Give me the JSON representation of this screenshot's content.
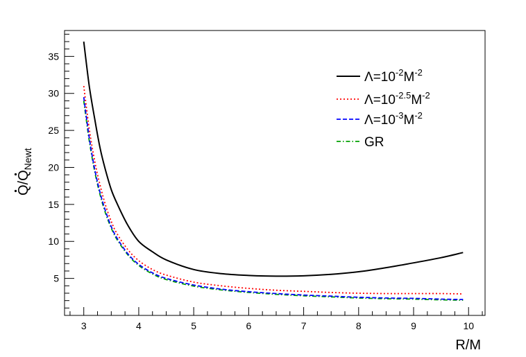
{
  "chart_data": {
    "type": "line",
    "xlabel": "R/M",
    "ylabel_main": "Q/Q",
    "ylabel_sub": "Newt",
    "xlim": [
      2.65,
      10.3
    ],
    "ylim": [
      0,
      38.5
    ],
    "xticks": [
      3,
      4,
      5,
      6,
      7,
      8,
      9,
      10
    ],
    "yticks": [
      5,
      10,
      15,
      20,
      25,
      30,
      35
    ],
    "grid": false,
    "legend_position": "top-right",
    "series": [
      {
        "name": "Λ=10⁻²M⁻²",
        "legend": {
          "base": "Λ=10",
          "exp1": "-2",
          "mid": "M",
          "exp2": "-2"
        },
        "color": "#000000",
        "style": "solid",
        "x": [
          3.0,
          3.1,
          3.2,
          3.3,
          3.4,
          3.5,
          3.6,
          3.8,
          4.0,
          4.25,
          4.5,
          5.0,
          5.5,
          6.0,
          6.5,
          7.0,
          7.5,
          8.0,
          8.5,
          9.0,
          9.5,
          9.9
        ],
        "y": [
          37.0,
          31.0,
          26.5,
          22.5,
          19.5,
          17.0,
          15.2,
          12.2,
          10.0,
          8.6,
          7.5,
          6.2,
          5.65,
          5.4,
          5.3,
          5.35,
          5.55,
          5.9,
          6.45,
          7.1,
          7.8,
          8.5
        ]
      },
      {
        "name": "Λ=10⁻²·⁵M⁻²",
        "legend": {
          "base": "Λ=10",
          "exp1": "-2.5",
          "mid": "M",
          "exp2": "-2"
        },
        "color": "#ff0000",
        "style": "dotted",
        "x": [
          3.0,
          3.1,
          3.2,
          3.3,
          3.4,
          3.5,
          3.6,
          3.8,
          4.0,
          4.25,
          4.5,
          5.0,
          5.5,
          6.0,
          6.5,
          7.0,
          7.5,
          8.0,
          8.5,
          9.0,
          9.5,
          9.9
        ],
        "y": [
          31.0,
          25.2,
          20.8,
          17.5,
          14.8,
          12.7,
          11.1,
          8.9,
          7.4,
          6.2,
          5.45,
          4.5,
          4.0,
          3.65,
          3.4,
          3.25,
          3.1,
          3.0,
          2.95,
          2.95,
          2.95,
          2.9
        ]
      },
      {
        "name": "Λ=10⁻³M⁻²",
        "legend": {
          "base": "Λ=10",
          "exp1": "-3",
          "mid": "M",
          "exp2": "-2"
        },
        "color": "#0000ff",
        "style": "dashed",
        "x": [
          3.0,
          3.1,
          3.2,
          3.3,
          3.4,
          3.5,
          3.6,
          3.8,
          4.0,
          4.25,
          4.5,
          5.0,
          5.5,
          6.0,
          6.5,
          7.0,
          7.5,
          8.0,
          8.5,
          9.0,
          9.5,
          9.9
        ],
        "y": [
          29.5,
          24.0,
          19.7,
          16.5,
          14.0,
          12.0,
          10.5,
          8.35,
          6.9,
          5.75,
          5.0,
          4.1,
          3.55,
          3.2,
          2.95,
          2.75,
          2.6,
          2.45,
          2.35,
          2.3,
          2.2,
          2.15
        ]
      },
      {
        "name": "GR",
        "legend": {
          "base": "GR",
          "exp1": "",
          "mid": "",
          "exp2": ""
        },
        "color": "#00a000",
        "style": "dashdot",
        "x": [
          3.0,
          3.1,
          3.2,
          3.3,
          3.4,
          3.5,
          3.6,
          3.8,
          4.0,
          4.25,
          4.5,
          5.0,
          5.5,
          6.0,
          6.5,
          7.0,
          7.5,
          8.0,
          8.5,
          9.0,
          9.5,
          9.9
        ],
        "y": [
          29.0,
          23.6,
          19.4,
          16.2,
          13.7,
          11.8,
          10.3,
          8.2,
          6.75,
          5.6,
          4.85,
          3.95,
          3.45,
          3.1,
          2.85,
          2.65,
          2.5,
          2.35,
          2.25,
          2.2,
          2.1,
          2.05
        ]
      }
    ]
  }
}
